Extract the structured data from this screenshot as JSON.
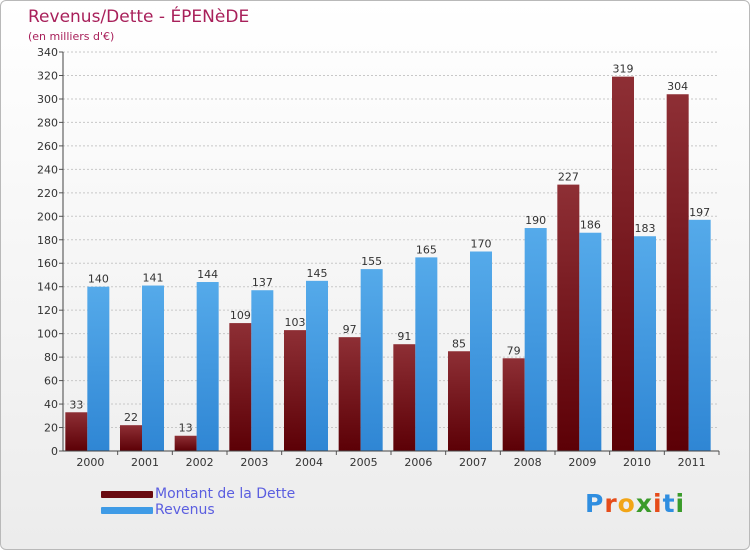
{
  "title": "Revenus/Dette - ÉPENèDE",
  "subtitle": "(en milliers d'€)",
  "colors": {
    "title": "#a8205a",
    "dette": "#7a0f16",
    "revenus": "#3f9be6",
    "legend_text": "#5b5ee0"
  },
  "logo": {
    "letters": [
      "P",
      "r",
      "o",
      "x",
      "i",
      "t",
      "i"
    ],
    "colors": [
      "#2f8ee0",
      "#e64c1a",
      "#f2a516",
      "#3a9b2a",
      "#e64c1a",
      "#2f8ee0",
      "#3a9b2a"
    ]
  },
  "chart_data": {
    "type": "bar",
    "categories": [
      "2000",
      "2001",
      "2002",
      "2003",
      "2004",
      "2005",
      "2006",
      "2007",
      "2008",
      "2009",
      "2010",
      "2011"
    ],
    "series": [
      {
        "name": "Montant de la Dette",
        "values": [
          33,
          22,
          13,
          109,
          103,
          97,
          91,
          85,
          79,
          227,
          319,
          304
        ]
      },
      {
        "name": "Revenus",
        "values": [
          140,
          141,
          144,
          137,
          145,
          155,
          165,
          170,
          190,
          186,
          183,
          197
        ]
      }
    ],
    "ylim": [
      0,
      340
    ],
    "yticks": [
      0,
      20,
      40,
      60,
      80,
      100,
      120,
      140,
      160,
      180,
      200,
      220,
      240,
      260,
      280,
      300,
      320,
      340
    ],
    "grid": true,
    "legend": "bottom-left"
  }
}
